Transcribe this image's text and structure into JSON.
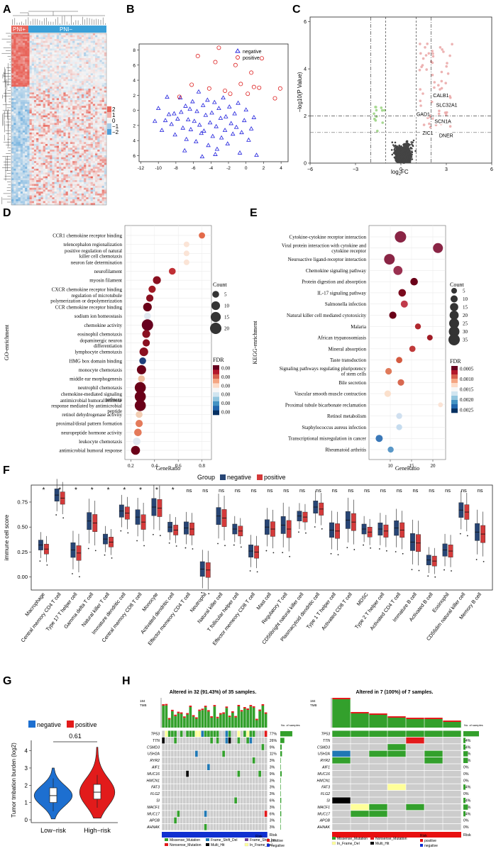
{
  "panels": {
    "A": "A",
    "B": "B",
    "C": "C",
    "D": "D",
    "E": "E",
    "F": "F",
    "G": "G",
    "H": "H"
  },
  "panel_a": {
    "group_labels": [
      "PNI+",
      "PNI−"
    ],
    "scale_ticks": [
      "2",
      "1",
      "0",
      "−1",
      "−2"
    ],
    "colors": {
      "high": "#e8645a",
      "low": "#4f9ed8",
      "mid": "#f5f5f5",
      "pni_pos": "#e8645a",
      "pni_neg": "#3aa0d8"
    }
  },
  "chart_data": [
    {
      "id": "B",
      "type": "scatter",
      "legend": [
        "negative",
        "positive"
      ],
      "xticks": [
        -12,
        -10,
        -8,
        -6,
        -4,
        -2,
        0,
        2,
        4
      ],
      "yticks": [
        -6,
        -4,
        -2,
        0,
        2,
        4,
        6,
        8
      ],
      "xlim": [
        -12.2,
        4.8
      ],
      "ylim": [
        -6.8,
        8.8
      ],
      "negative": [
        [
          -9.2,
          -1.3
        ],
        [
          -8.8,
          -0.5
        ],
        [
          -8.5,
          -1.8
        ],
        [
          -8.2,
          -0.4
        ],
        [
          -8.1,
          -3.2
        ],
        [
          -7.8,
          -1.1
        ],
        [
          -7.5,
          1.7
        ],
        [
          -7.4,
          -0.2
        ],
        [
          -7.2,
          -2.3
        ],
        [
          -6.9,
          0.6
        ],
        [
          -6.8,
          -3.8
        ],
        [
          -6.6,
          -1.2
        ],
        [
          -6.4,
          0.2
        ],
        [
          -6.3,
          -2.5
        ],
        [
          -6.1,
          1.2
        ],
        [
          -5.9,
          -1.4
        ],
        [
          -5.7,
          -4.1
        ],
        [
          -5.6,
          -0.1
        ],
        [
          -5.4,
          2.5
        ],
        [
          -5.3,
          -1.9
        ],
        [
          -5.1,
          -3.0
        ],
        [
          -4.9,
          0.7
        ],
        [
          -4.8,
          -2.7
        ],
        [
          -4.6,
          -0.6
        ],
        [
          -4.4,
          1.4
        ],
        [
          -4.3,
          -4.6
        ],
        [
          -4.1,
          -1.6
        ],
        [
          -3.9,
          -0.3
        ],
        [
          -3.8,
          -3.4
        ],
        [
          -3.6,
          1.1
        ],
        [
          -3.4,
          -2.1
        ],
        [
          -3.3,
          -5.1
        ],
        [
          -3.1,
          0.3
        ],
        [
          -2.9,
          -1.0
        ],
        [
          -2.8,
          -3.6
        ],
        [
          -2.6,
          1.7
        ],
        [
          -2.4,
          -2.6
        ],
        [
          -2.3,
          -0.8
        ],
        [
          -2.1,
          -4.4
        ],
        [
          -1.9,
          0.5
        ],
        [
          -1.7,
          -1.7
        ],
        [
          -1.5,
          -3.1
        ],
        [
          -1.3,
          -0.4
        ],
        [
          -1.1,
          -2.2
        ],
        [
          -0.9,
          1.0
        ],
        [
          -0.7,
          -5.6
        ],
        [
          -0.5,
          -2.9
        ],
        [
          -0.2,
          -1.3
        ],
        [
          0.0,
          0.1
        ],
        [
          0.3,
          -3.9
        ],
        [
          0.6,
          -2.4
        ],
        [
          0.9,
          -0.9
        ],
        [
          1.2,
          -5.9
        ],
        [
          -10.0,
          0.3
        ],
        [
          -9.6,
          -2.6
        ],
        [
          -10.4,
          -1.4
        ],
        [
          -9.0,
          1.8
        ],
        [
          -7.0,
          -5.3
        ],
        [
          -5.0,
          -6.1
        ],
        [
          -3.5,
          -5.8
        ]
      ],
      "positive": [
        [
          -7.6,
          1.8
        ],
        [
          -5.5,
          7.2
        ],
        [
          -4.2,
          2.9
        ],
        [
          -3.5,
          6.4
        ],
        [
          -3.1,
          8.3
        ],
        [
          -1.8,
          2.2
        ],
        [
          -1.2,
          6.0
        ],
        [
          -0.6,
          3.5
        ],
        [
          0.2,
          2.2
        ],
        [
          0.6,
          5.0
        ],
        [
          0.9,
          3.1
        ],
        [
          1.5,
          3.0
        ],
        [
          1.8,
          6.9
        ],
        [
          3.3,
          1.6
        ],
        [
          3.9,
          2.9
        ],
        [
          -6.2,
          3.4
        ],
        [
          -2.4,
          2.6
        ]
      ],
      "colors": {
        "negative": "#2222dd",
        "positive": "#dd2222"
      }
    },
    {
      "id": "C",
      "type": "scatter",
      "xlabel": "log2FC",
      "ylabel": "−log10(P Value)",
      "xticks": [
        -6,
        -3,
        0,
        3,
        6
      ],
      "yticks": [
        0,
        2,
        4,
        6
      ],
      "xlim": [
        -6,
        6
      ],
      "ylim": [
        0,
        6.2
      ],
      "thresholds_x": [
        -2,
        -1,
        1,
        2
      ],
      "thresholds_y": [
        1.3,
        2.0
      ],
      "gene_labels": [
        {
          "name": "CALB1",
          "x": 2.1,
          "y": 2.8
        },
        {
          "name": "SLC32A1",
          "x": 2.3,
          "y": 2.4
        },
        {
          "name": "GAD1",
          "x": 1.0,
          "y": 2.0
        },
        {
          "name": "SCN1A",
          "x": 2.2,
          "y": 1.7
        },
        {
          "name": "ZIC1",
          "x": 1.4,
          "y": 1.2
        },
        {
          "name": "DNER",
          "x": 2.5,
          "y": 1.1
        }
      ]
    },
    {
      "id": "D",
      "type": "scatter",
      "ylabel": "GO-enrichment",
      "xlabel": "GeneRatio",
      "xticks": [
        "0.2",
        "0.4",
        "0.6",
        "0.8"
      ],
      "xlim": [
        0.15,
        0.88
      ],
      "terms": [
        {
          "label": "CCR1 chemokine receptor binding",
          "x": 0.8,
          "count": 4,
          "color": "#e36a4a"
        },
        {
          "label": "telencephalon regionalization",
          "x": 0.67,
          "count": 3,
          "color": "#fbe4d6"
        },
        {
          "label": "positive regulation of natural killer cell chemotaxis",
          "x": 0.67,
          "count": 3,
          "color": "#fbe4d6"
        },
        {
          "label": "neuron fate determination",
          "x": 0.67,
          "count": 3,
          "color": "#fbe4d6"
        },
        {
          "label": "neurofilament",
          "x": 0.55,
          "count": 5,
          "color": "#c03035"
        },
        {
          "label": "myosin filament",
          "x": 0.42,
          "count": 8,
          "color": "#8a1020"
        },
        {
          "label": "CXCR chemokine receptor binding",
          "x": 0.38,
          "count": 6,
          "color": "#a01b25"
        },
        {
          "label": "regulation of microtubule polymerization or depolymerization",
          "x": 0.36,
          "count": 6,
          "color": "#8a1020"
        },
        {
          "label": "CCR chemokine receptor binding",
          "x": 0.34,
          "count": 10,
          "color": "#6a0018"
        },
        {
          "label": "sodium ion homeostasis",
          "x": 0.34,
          "count": 5,
          "color": "#e0e8f0"
        },
        {
          "label": "chemokine activity",
          "x": 0.34,
          "count": 20,
          "color": "#67001f"
        },
        {
          "label": "eosinophil chemotaxis",
          "x": 0.33,
          "count": 8,
          "color": "#8a1020"
        },
        {
          "label": "dopaminergic neuron differentiation",
          "x": 0.33,
          "count": 6,
          "color": "#8a1020"
        },
        {
          "label": "lymphocyte chemotaxis",
          "x": 0.31,
          "count": 10,
          "color": "#8a1020"
        },
        {
          "label": "HMG box domain binding",
          "x": 0.3,
          "count": 5,
          "color": "#1f3f7a"
        },
        {
          "label": "monocyte chemotaxis",
          "x": 0.29,
          "count": 12,
          "color": "#6a0018"
        },
        {
          "label": "middle ear morphogenesis",
          "x": 0.29,
          "count": 5,
          "color": "#f0c0a0"
        },
        {
          "label": "neutrophil chemotaxis",
          "x": 0.28,
          "count": 19,
          "color": "#6a0018"
        },
        {
          "label": "chemokine-mediated signaling pathway",
          "x": 0.28,
          "count": 19,
          "color": "#6a0018"
        },
        {
          "label": "antimicrobial humoral immune response mediated by antimicrobial peptide",
          "x": 0.28,
          "count": 19,
          "color": "#6a0018"
        },
        {
          "label": "retinol dehydrogenase activity",
          "x": 0.27,
          "count": 5,
          "color": "#f2cdb2"
        },
        {
          "label": "proximal/distal pattern formation",
          "x": 0.27,
          "count": 6,
          "color": "#e47a5a"
        },
        {
          "label": "neuropeptide hormone activity",
          "x": 0.26,
          "count": 7,
          "color": "#e47a5a"
        },
        {
          "label": "leukocyte chemotaxis",
          "x": 0.25,
          "count": 7,
          "color": "#e0e8f0"
        },
        {
          "label": "antimicrobial humoral response",
          "x": 0.24,
          "count": 11,
          "color": "#6a0018"
        }
      ],
      "size_legend": {
        "title": "Count",
        "values": [
          "5",
          "10",
          "15",
          "20"
        ]
      },
      "color_legend": {
        "title": "FDR",
        "values": [
          "0.00",
          "0.00",
          "0.00",
          "0.00",
          "0.00",
          "0.00"
        ]
      }
    },
    {
      "id": "E",
      "type": "scatter",
      "ylabel": "KEGG-enrichment",
      "xlabel": "GeneRatio",
      "xticks": [
        "10",
        "15",
        "20"
      ],
      "xlim": [
        5,
        23
      ],
      "terms": [
        {
          "label": "Cytokine-cytokine receptor interaction",
          "x": 12.4,
          "count": 35,
          "color": "#8a2545"
        },
        {
          "label": "Viral protein interaction with cytokine and cytokine receptor",
          "x": 21.2,
          "count": 25,
          "color": "#8a2545"
        },
        {
          "label": "Neuroactive ligand-receptor interaction",
          "x": 9.8,
          "count": 30,
          "color": "#8a2545"
        },
        {
          "label": "Chemokine signaling pathway",
          "x": 11.8,
          "count": 20,
          "color": "#9a3050"
        },
        {
          "label": "Protein digestion and absorption",
          "x": 15.6,
          "count": 12,
          "color": "#6a0018"
        },
        {
          "label": "IL-17 signaling pathway",
          "x": 12.8,
          "count": 12,
          "color": "#7a0a1e"
        },
        {
          "label": "Salmonella infection",
          "x": 13.3,
          "count": 10,
          "color": "#c03a4a"
        },
        {
          "label": "Natural killer cell mediated cytotoxicity",
          "x": 10.6,
          "count": 11,
          "color": "#6a0018"
        },
        {
          "label": "Malaria",
          "x": 16.5,
          "count": 6,
          "color": "#b0282e"
        },
        {
          "label": "African trypanosomiasis",
          "x": 19.3,
          "count": 5,
          "color": "#a01b25"
        },
        {
          "label": "Mineral absorption",
          "x": 15.2,
          "count": 7,
          "color": "#c03a3a"
        },
        {
          "label": "Taste transduction",
          "x": 12.1,
          "count": 7,
          "color": "#d45a40"
        },
        {
          "label": "Signaling pathways regulating pluripotency of stem cells",
          "x": 9.6,
          "count": 8,
          "color": "#e07a5a"
        },
        {
          "label": "Bile secretion",
          "x": 12.5,
          "count": 8,
          "color": "#d86850"
        },
        {
          "label": "Vascular smooth muscle contraction",
          "x": 9.4,
          "count": 8,
          "color": "#fbe0cc"
        },
        {
          "label": "Proximal tubule bicarbonate reclamation",
          "x": 21.8,
          "count": 3,
          "color": "#fbe4d6"
        },
        {
          "label": "Retinol metabolism",
          "x": 12.1,
          "count": 6,
          "color": "#d0e0f0"
        },
        {
          "label": "Staphylococcus aureus infection",
          "x": 12.1,
          "count": 6,
          "color": "#c5dcef"
        },
        {
          "label": "Transcriptional misregulation in cancer",
          "x": 7.4,
          "count": 10,
          "color": "#3a78b8"
        },
        {
          "label": "Rheumatoid arthritis",
          "x": 10.1,
          "count": 6,
          "color": "#5a98c8"
        }
      ],
      "size_legend": {
        "title": "Count",
        "values": [
          "5",
          "10",
          "15",
          "20",
          "25",
          "30",
          "35"
        ]
      },
      "color_legend": {
        "title": "FDR",
        "values": [
          "0.0005",
          "0.0010",
          "0.0015",
          "0.0020",
          "0.0025"
        ]
      }
    },
    {
      "id": "F",
      "type": "bar",
      "legend_title": "Group",
      "legend": [
        "negative",
        "positive"
      ],
      "ylabel": "immune cell score",
      "yticks": [
        "0.00",
        "0.25",
        "0.50",
        "0.75"
      ],
      "ylim": [
        -0.13,
        0.92
      ],
      "categories": [
        "Macrophage",
        "Central memory CD4 T cell",
        "Type 17 T helper cell",
        "Gamma delta T cell",
        "Natural killer T cell",
        "Immature dendritic cell",
        "Central memory CD8 T cell",
        "Monocyte",
        "Activated dendritic cell",
        "Effector memeory CD4 T cell",
        "Neutrophil",
        "Natural killer cell",
        "T follicular helper cell",
        "Effector memeory CD8 T cell",
        "Mast cell",
        "Regulatory T cell",
        "CD56bright natural killer cell",
        "Plasmacytoid dendritic cell",
        "Type 1 T helper cell",
        "Activated CD8 T cell",
        "MDSC",
        "Type 2 T helper cell",
        "Activated CD4 T cell",
        "Immature  B cell",
        "Activated B cell",
        "Eosinophil",
        "CD56dim natural killer cell",
        "Memory B cell"
      ],
      "significance": [
        "*",
        "*",
        "*",
        "*",
        "*",
        "*",
        "*",
        "*",
        "*",
        "ns",
        "ns",
        "ns",
        "ns",
        "ns",
        "ns",
        "ns",
        "ns",
        "ns",
        "ns",
        "ns",
        "ns",
        "ns",
        "ns",
        "ns",
        "ns",
        "ns",
        "ns",
        "ns"
      ],
      "negative_median": [
        0.32,
        0.82,
        0.27,
        0.56,
        0.38,
        0.66,
        0.6,
        0.7,
        0.5,
        0.49,
        0.08,
        0.61,
        0.48,
        0.26,
        0.5,
        0.52,
        0.61,
        0.7,
        0.47,
        0.57,
        0.48,
        0.48,
        0.49,
        0.35,
        0.17,
        0.27,
        0.67,
        0.45
      ],
      "positive_median": [
        0.28,
        0.79,
        0.24,
        0.54,
        0.35,
        0.64,
        0.55,
        0.69,
        0.47,
        0.48,
        0.07,
        0.59,
        0.46,
        0.25,
        0.48,
        0.48,
        0.6,
        0.68,
        0.46,
        0.55,
        0.45,
        0.46,
        0.47,
        0.34,
        0.16,
        0.26,
        0.65,
        0.43
      ],
      "colors": {
        "negative": "#274575",
        "positive": "#d43a3a"
      }
    },
    {
      "id": "G",
      "type": "bar",
      "legend": [
        "negative",
        "positive"
      ],
      "ylabel": "Tumor tmbation burden (log2)",
      "yticks": [
        "0",
        "1",
        "2",
        "3",
        "4"
      ],
      "ylim": [
        0,
        4.6
      ],
      "categories": [
        "Low−risk",
        "High−risk"
      ],
      "medians": [
        1.4,
        1.6
      ],
      "p_value": "0.61",
      "colors": {
        "negative": "#1d6fd0",
        "positive": "#e21b1b"
      }
    }
  ],
  "panel_h": {
    "left": {
      "title": "Altered in 32 (91.43%) of 35 samples.",
      "tmb_label": "TMB",
      "tmb_max": "184",
      "percent_title": "No. of samples",
      "genes": [
        "TP53",
        "TTN",
        "CSMD3",
        "USH2A",
        "RYR2",
        "AIF1",
        "MUC16",
        "HMCN1",
        "FAT3",
        "FLG2",
        "SI",
        "MACF1",
        "MUC17",
        "APOB",
        "AHNAK"
      ],
      "percents": [
        "77%",
        "26%",
        "9%",
        "11%",
        "3%",
        "3%",
        "9%",
        "3%",
        "3%",
        "3%",
        "6%",
        "3%",
        "6%",
        "3%",
        "3%"
      ],
      "risk_label": "Risk"
    },
    "right": {
      "title": "Altered in 7 (100%) of 7 samples.",
      "tmb_label": "TMB",
      "tmb_max": "184",
      "percent_title": "No. of samples",
      "genes": [
        "TP53",
        "TTN",
        "CSMD3",
        "USH2A",
        "RYR2",
        "AIF1",
        "MUC16",
        "HMCN1",
        "FAT3",
        "FLG2",
        "SI",
        "MACF1",
        "MUC17",
        "APOB",
        "AHNAK"
      ],
      "percents": [
        "100%",
        "14%",
        "14%",
        "29%",
        "29%",
        "0%",
        "0%",
        "0%",
        "14%",
        "0%",
        "14%",
        "29%",
        "14%",
        "0%",
        "0%"
      ],
      "risk_label": "Risk"
    },
    "legend": {
      "items": [
        "Missense_Mutation",
        "Frame_Shift_Ins",
        "Nonsense_Mutation",
        "In_Frame_Del",
        "Frame_Shift_Del",
        "Multi_Hit"
      ],
      "risk_title": "Risk",
      "risk_items": [
        "positive",
        "negative"
      ]
    },
    "colors": {
      "missense": "#33a02c",
      "nonsense": "#e31a1c",
      "frame_shift_del": "#1f78b4",
      "frame_shift_ins": "#6a3d9a",
      "in_frame_del": "#ffff99",
      "multi_hit": "#000000",
      "empty": "#cccccc",
      "risk_neg": "#1030d0",
      "risk_pos": "#e81010"
    }
  }
}
